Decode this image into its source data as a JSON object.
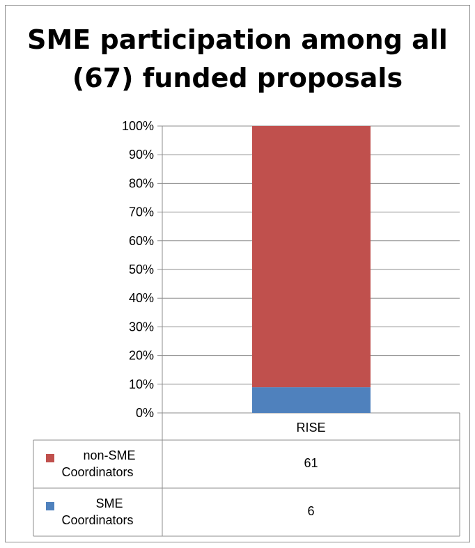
{
  "chart_data": {
    "type": "bar",
    "stacked": true,
    "percent": true,
    "title": "SME participation among all (67) funded proposals",
    "categories": [
      "RISE"
    ],
    "yticks": [
      "0%",
      "10%",
      "20%",
      "30%",
      "40%",
      "50%",
      "60%",
      "70%",
      "80%",
      "90%",
      "100%"
    ],
    "ylim": [
      0,
      100
    ],
    "grid": true,
    "legend": "data table",
    "series": [
      {
        "name": "non-SME Coordinators",
        "values": [
          61
        ],
        "color": "#c0504d"
      },
      {
        "name": "SME Coordinators",
        "values": [
          6
        ],
        "color": "#4f81bd"
      }
    ]
  }
}
